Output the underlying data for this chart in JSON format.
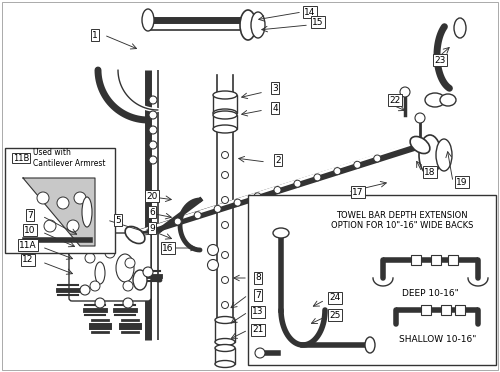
{
  "bg_color": "#ffffff",
  "line_color": "#333333",
  "fig_width": 5.0,
  "fig_height": 3.72,
  "dpi": 100,
  "inset2_title": "TOWEL BAR DEPTH EXTENSION\nOPTION FOR 10\"-16\" WIDE BACKS",
  "inset2_line1": "DEEP 10-16\"",
  "inset2_line2": "SHALLOW 10-16\""
}
